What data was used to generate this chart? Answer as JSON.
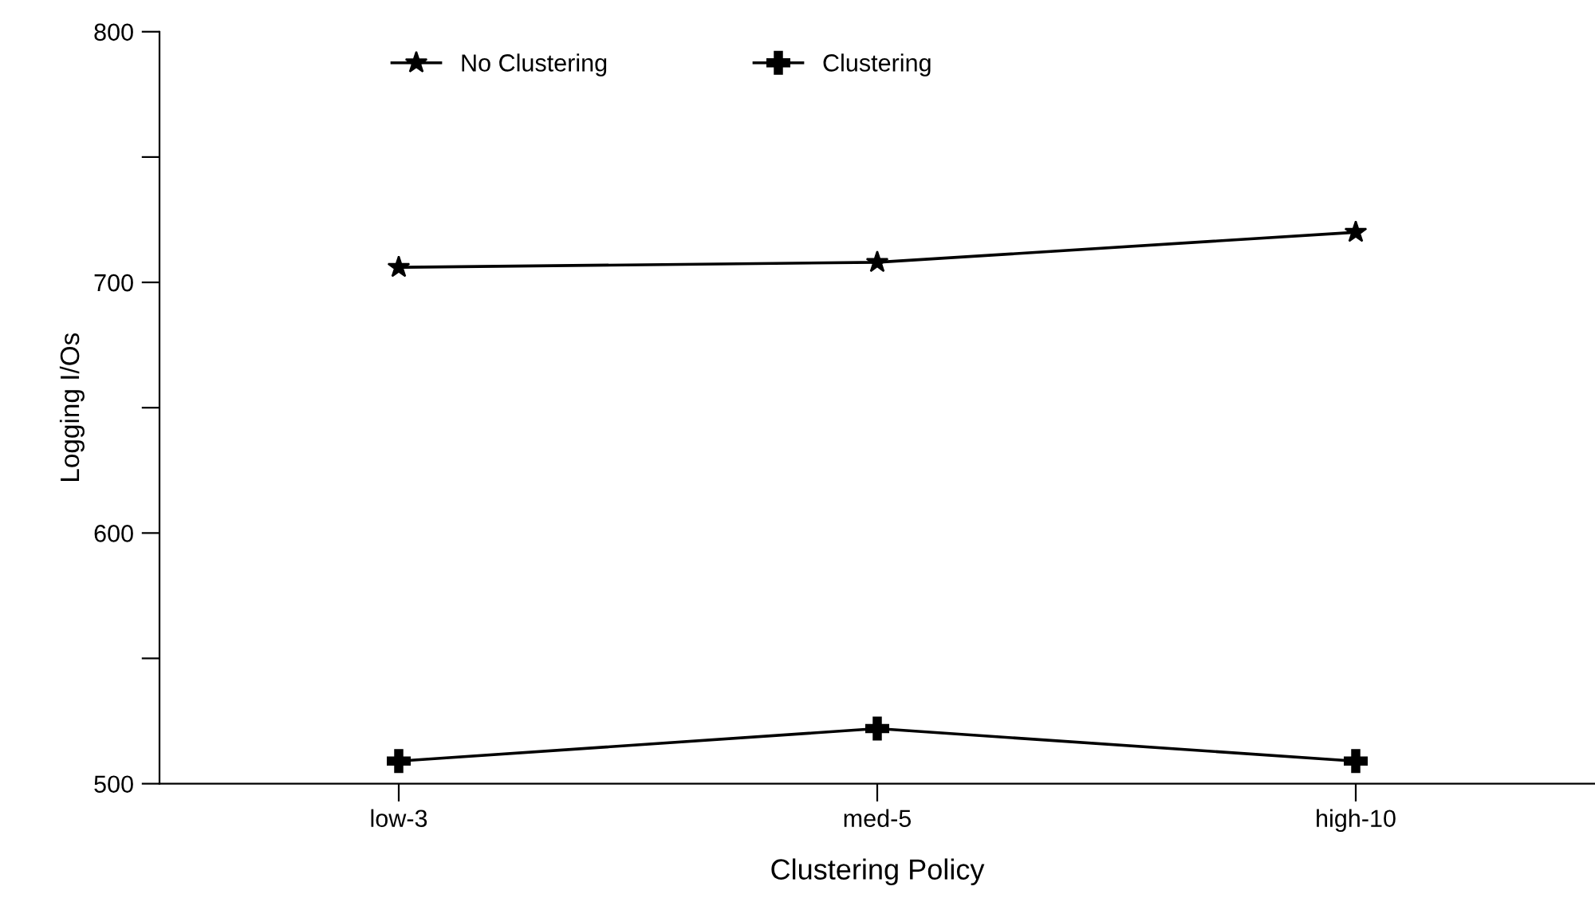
{
  "chart_data": {
    "type": "line",
    "xlabel": "Clustering Policy",
    "ylabel": "Logging I/Os",
    "categories": [
      "low-3",
      "med-5",
      "high-10"
    ],
    "series": [
      {
        "name": "No Clustering",
        "color": "#000000",
        "marker": "star",
        "values": [
          706,
          708,
          720
        ]
      },
      {
        "name": "Clustering",
        "color": "#000000",
        "marker": "cross",
        "values": [
          509,
          522,
          509
        ]
      }
    ],
    "ylim": [
      500,
      800
    ],
    "yticks": [
      500,
      {
        "value": 550,
        "label": null
      },
      600,
      {
        "value": 650,
        "label": null
      },
      700,
      {
        "value": 750,
        "label": null
      },
      800
    ],
    "grid": false,
    "legend": "top",
    "line_style": "solid"
  }
}
